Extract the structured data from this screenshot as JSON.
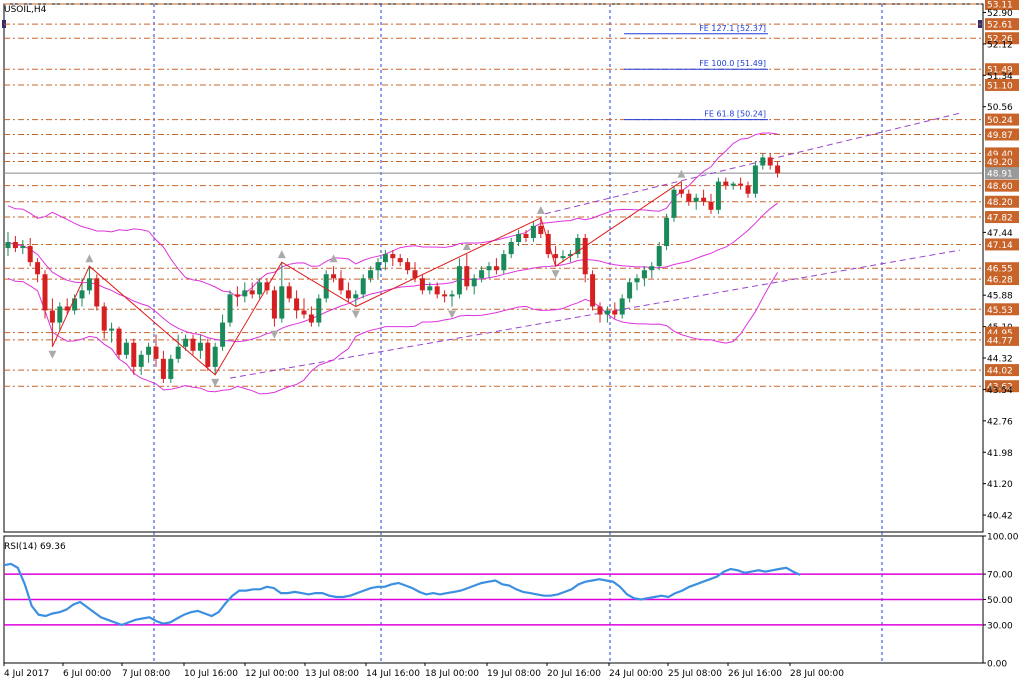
{
  "window_title": "USOIL,H4",
  "colors": {
    "background": "#ffffff",
    "axis_frame": "#000000",
    "vertical_grid": "#1f3fd8",
    "level_line": "#c8642a",
    "level_label_bg": "#c8642a",
    "current_price_label_bg": "#9a9a9a",
    "bollinger": "#dd33dd",
    "trend_channel": "#9944cc",
    "fe_line": "#1f3fd8",
    "zigzag": "#e01b1b",
    "bull_candle": "#1a8a5a",
    "bear_candle": "#d42020",
    "rsi_line": "#3d8fe0",
    "rsi_levels": "#dd00dd"
  },
  "chart_data": [
    {
      "type": "candlestick",
      "title": "USOIL,H4",
      "symbol": "USOIL",
      "timeframe": "H4",
      "ylim": [
        40.0,
        53.11
      ],
      "grid": false,
      "price_axis_labels": [
        "53.11",
        "52.90",
        "52.61",
        "52.26",
        "52.12",
        "51.49",
        "51.34",
        "51.10",
        "50.56",
        "50.24",
        "49.87",
        "49.40",
        "49.20",
        "48.91",
        "48.60",
        "48.20",
        "47.82",
        "47.44",
        "47.14",
        "46.55",
        "46.28",
        "45.88",
        "45.53",
        "45.10",
        "44.95",
        "44.77",
        "44.32",
        "44.02",
        "43.62",
        "43.54",
        "42.76",
        "41.98",
        "41.20",
        "40.42"
      ],
      "highlighted_levels": [
        "53.11",
        "52.61",
        "52.26",
        "51.49",
        "51.10",
        "50.24",
        "49.87",
        "49.40",
        "49.20",
        "48.60",
        "48.20",
        "47.82",
        "47.14",
        "46.55",
        "46.28",
        "45.53",
        "44.95",
        "44.77",
        "44.02",
        "43.62"
      ],
      "current_price": "48.91",
      "x_tick_labels": [
        "4 Jul 2017",
        "6 Jul 00:00",
        "7 Jul 08:00",
        "10 Jul 16:00",
        "12 Jul 00:00",
        "13 Jul 08:00",
        "14 Jul 16:00",
        "18 Jul 00:00",
        "19 Jul 08:00",
        "20 Jul 16:00",
        "24 Jul 00:00",
        "25 Jul 08:00",
        "26 Jul 16:00",
        "28 Jul 00:00"
      ],
      "fibonacci_expansion": [
        {
          "label": "FE 127.1 [52.37]",
          "price": 52.37
        },
        {
          "label": "FE 100.0 [51.49]",
          "price": 51.49
        },
        {
          "label": "FE 61.8 [50.24]",
          "price": 50.24
        }
      ],
      "candles": [
        {
          "o": 47.05,
          "h": 47.45,
          "l": 46.85,
          "c": 47.2
        },
        {
          "o": 47.2,
          "h": 47.35,
          "l": 46.95,
          "c": 47.05
        },
        {
          "o": 47.05,
          "h": 47.25,
          "l": 46.9,
          "c": 47.1
        },
        {
          "o": 47.1,
          "h": 47.3,
          "l": 46.6,
          "c": 46.7
        },
        {
          "o": 46.7,
          "h": 46.8,
          "l": 46.2,
          "c": 46.4
        },
        {
          "o": 46.4,
          "h": 46.5,
          "l": 45.3,
          "c": 45.5
        },
        {
          "o": 45.5,
          "h": 45.8,
          "l": 44.6,
          "c": 45.2
        },
        {
          "o": 45.2,
          "h": 45.7,
          "l": 45.0,
          "c": 45.6
        },
        {
          "o": 45.6,
          "h": 45.8,
          "l": 45.4,
          "c": 45.5
        },
        {
          "o": 45.5,
          "h": 45.9,
          "l": 45.4,
          "c": 45.8
        },
        {
          "o": 45.8,
          "h": 46.3,
          "l": 45.6,
          "c": 46.0
        },
        {
          "o": 46.0,
          "h": 46.6,
          "l": 45.9,
          "c": 46.3
        },
        {
          "o": 46.3,
          "h": 46.4,
          "l": 45.5,
          "c": 45.6
        },
        {
          "o": 45.6,
          "h": 45.7,
          "l": 44.8,
          "c": 45.0
        },
        {
          "o": 45.0,
          "h": 45.2,
          "l": 44.7,
          "c": 45.05
        },
        {
          "o": 45.05,
          "h": 45.1,
          "l": 44.3,
          "c": 44.4
        },
        {
          "o": 44.4,
          "h": 44.8,
          "l": 44.3,
          "c": 44.7
        },
        {
          "o": 44.7,
          "h": 44.8,
          "l": 43.9,
          "c": 44.1
        },
        {
          "o": 44.1,
          "h": 44.5,
          "l": 43.9,
          "c": 44.4
        },
        {
          "o": 44.4,
          "h": 44.7,
          "l": 44.2,
          "c": 44.6
        },
        {
          "o": 44.6,
          "h": 44.9,
          "l": 44.1,
          "c": 44.3
        },
        {
          "o": 44.3,
          "h": 44.5,
          "l": 43.7,
          "c": 43.8
        },
        {
          "o": 43.8,
          "h": 44.4,
          "l": 43.7,
          "c": 44.3
        },
        {
          "o": 44.3,
          "h": 44.9,
          "l": 44.2,
          "c": 44.6
        },
        {
          "o": 44.6,
          "h": 44.9,
          "l": 44.5,
          "c": 44.8
        },
        {
          "o": 44.8,
          "h": 44.9,
          "l": 44.4,
          "c": 44.5
        },
        {
          "o": 44.5,
          "h": 44.9,
          "l": 44.3,
          "c": 44.7
        },
        {
          "o": 44.7,
          "h": 44.8,
          "l": 44.0,
          "c": 44.1
        },
        {
          "o": 44.1,
          "h": 44.7,
          "l": 43.9,
          "c": 44.6
        },
        {
          "o": 44.6,
          "h": 45.4,
          "l": 44.5,
          "c": 45.2
        },
        {
          "o": 45.2,
          "h": 46.0,
          "l": 45.1,
          "c": 45.9
        },
        {
          "o": 45.9,
          "h": 46.1,
          "l": 45.6,
          "c": 45.85
        },
        {
          "o": 45.85,
          "h": 46.2,
          "l": 45.7,
          "c": 46.0
        },
        {
          "o": 46.0,
          "h": 46.2,
          "l": 45.8,
          "c": 45.9
        },
        {
          "o": 45.9,
          "h": 46.3,
          "l": 45.8,
          "c": 46.2
        },
        {
          "o": 46.2,
          "h": 46.3,
          "l": 45.9,
          "c": 46.0
        },
        {
          "o": 46.0,
          "h": 46.1,
          "l": 45.1,
          "c": 45.3
        },
        {
          "o": 45.3,
          "h": 46.7,
          "l": 45.2,
          "c": 46.1
        },
        {
          "o": 46.1,
          "h": 46.2,
          "l": 45.7,
          "c": 45.8
        },
        {
          "o": 45.8,
          "h": 46.0,
          "l": 45.3,
          "c": 45.5
        },
        {
          "o": 45.5,
          "h": 45.8,
          "l": 45.3,
          "c": 45.4
        },
        {
          "o": 45.4,
          "h": 45.6,
          "l": 45.1,
          "c": 45.2
        },
        {
          "o": 45.2,
          "h": 45.9,
          "l": 45.1,
          "c": 45.8
        },
        {
          "o": 45.8,
          "h": 46.5,
          "l": 45.7,
          "c": 46.4
        },
        {
          "o": 46.4,
          "h": 46.6,
          "l": 46.2,
          "c": 46.3
        },
        {
          "o": 46.3,
          "h": 46.5,
          "l": 45.9,
          "c": 46.0
        },
        {
          "o": 46.0,
          "h": 46.2,
          "l": 45.7,
          "c": 45.8
        },
        {
          "o": 45.8,
          "h": 46.0,
          "l": 45.6,
          "c": 45.9
        },
        {
          "o": 45.9,
          "h": 46.4,
          "l": 45.8,
          "c": 46.3
        },
        {
          "o": 46.3,
          "h": 46.6,
          "l": 46.2,
          "c": 46.5
        },
        {
          "o": 46.5,
          "h": 46.8,
          "l": 46.3,
          "c": 46.7
        },
        {
          "o": 46.7,
          "h": 47.0,
          "l": 46.5,
          "c": 46.9
        },
        {
          "o": 46.9,
          "h": 47.0,
          "l": 46.6,
          "c": 46.8
        },
        {
          "o": 46.8,
          "h": 46.9,
          "l": 46.6,
          "c": 46.7
        },
        {
          "o": 46.7,
          "h": 46.8,
          "l": 46.4,
          "c": 46.5
        },
        {
          "o": 46.5,
          "h": 46.7,
          "l": 46.2,
          "c": 46.3
        },
        {
          "o": 46.3,
          "h": 46.4,
          "l": 45.9,
          "c": 46.0
        },
        {
          "o": 46.0,
          "h": 46.2,
          "l": 45.9,
          "c": 46.1
        },
        {
          "o": 46.1,
          "h": 46.2,
          "l": 45.8,
          "c": 45.9
        },
        {
          "o": 45.9,
          "h": 46.0,
          "l": 45.7,
          "c": 45.85
        },
        {
          "o": 45.85,
          "h": 46.0,
          "l": 45.6,
          "c": 45.9
        },
        {
          "o": 45.9,
          "h": 46.8,
          "l": 45.8,
          "c": 46.6
        },
        {
          "o": 46.6,
          "h": 46.9,
          "l": 46.0,
          "c": 46.1
        },
        {
          "o": 46.1,
          "h": 46.4,
          "l": 45.9,
          "c": 46.3
        },
        {
          "o": 46.3,
          "h": 46.6,
          "l": 46.2,
          "c": 46.5
        },
        {
          "o": 46.5,
          "h": 46.7,
          "l": 46.3,
          "c": 46.6
        },
        {
          "o": 46.6,
          "h": 46.8,
          "l": 46.4,
          "c": 46.5
        },
        {
          "o": 46.5,
          "h": 47.0,
          "l": 46.4,
          "c": 46.9
        },
        {
          "o": 46.9,
          "h": 47.3,
          "l": 46.8,
          "c": 47.2
        },
        {
          "o": 47.2,
          "h": 47.5,
          "l": 47.1,
          "c": 47.4
        },
        {
          "o": 47.4,
          "h": 47.5,
          "l": 47.2,
          "c": 47.3
        },
        {
          "o": 47.3,
          "h": 47.7,
          "l": 47.2,
          "c": 47.6
        },
        {
          "o": 47.6,
          "h": 47.8,
          "l": 47.3,
          "c": 47.4
        },
        {
          "o": 47.4,
          "h": 47.5,
          "l": 46.8,
          "c": 46.9
        },
        {
          "o": 46.9,
          "h": 47.1,
          "l": 46.6,
          "c": 46.8
        },
        {
          "o": 46.8,
          "h": 47.0,
          "l": 46.7,
          "c": 46.85
        },
        {
          "o": 46.85,
          "h": 47.0,
          "l": 46.7,
          "c": 46.9
        },
        {
          "o": 46.9,
          "h": 47.4,
          "l": 46.8,
          "c": 47.3
        },
        {
          "o": 47.3,
          "h": 47.4,
          "l": 46.2,
          "c": 46.4
        },
        {
          "o": 46.4,
          "h": 46.5,
          "l": 45.5,
          "c": 45.6
        },
        {
          "o": 45.6,
          "h": 45.7,
          "l": 45.2,
          "c": 45.4
        },
        {
          "o": 45.4,
          "h": 45.6,
          "l": 45.2,
          "c": 45.5
        },
        {
          "o": 45.5,
          "h": 45.7,
          "l": 45.3,
          "c": 45.4
        },
        {
          "o": 45.4,
          "h": 45.9,
          "l": 45.3,
          "c": 45.8
        },
        {
          "o": 45.8,
          "h": 46.3,
          "l": 45.7,
          "c": 46.2
        },
        {
          "o": 46.2,
          "h": 46.4,
          "l": 46.0,
          "c": 46.3
        },
        {
          "o": 46.3,
          "h": 46.6,
          "l": 46.1,
          "c": 46.5
        },
        {
          "o": 46.5,
          "h": 46.7,
          "l": 46.3,
          "c": 46.6
        },
        {
          "o": 46.6,
          "h": 47.2,
          "l": 46.5,
          "c": 47.1
        },
        {
          "o": 47.1,
          "h": 47.9,
          "l": 47.0,
          "c": 47.8
        },
        {
          "o": 47.8,
          "h": 48.6,
          "l": 47.7,
          "c": 48.5
        },
        {
          "o": 48.5,
          "h": 48.7,
          "l": 48.3,
          "c": 48.4
        },
        {
          "o": 48.4,
          "h": 48.5,
          "l": 48.1,
          "c": 48.2
        },
        {
          "o": 48.2,
          "h": 48.4,
          "l": 48.0,
          "c": 48.3
        },
        {
          "o": 48.3,
          "h": 48.5,
          "l": 48.1,
          "c": 48.2
        },
        {
          "o": 48.2,
          "h": 48.4,
          "l": 47.9,
          "c": 48.0
        },
        {
          "o": 48.0,
          "h": 48.8,
          "l": 47.9,
          "c": 48.7
        },
        {
          "o": 48.7,
          "h": 48.8,
          "l": 48.5,
          "c": 48.6
        },
        {
          "o": 48.6,
          "h": 48.7,
          "l": 48.5,
          "c": 48.65
        },
        {
          "o": 48.65,
          "h": 48.8,
          "l": 48.5,
          "c": 48.6
        },
        {
          "o": 48.6,
          "h": 48.7,
          "l": 48.3,
          "c": 48.4
        },
        {
          "o": 48.4,
          "h": 49.2,
          "l": 48.3,
          "c": 49.1
        },
        {
          "o": 49.1,
          "h": 49.4,
          "l": 49.0,
          "c": 49.3
        },
        {
          "o": 49.3,
          "h": 49.4,
          "l": 49.0,
          "c": 49.1
        },
        {
          "o": 49.1,
          "h": 49.2,
          "l": 48.8,
          "c": 48.91
        }
      ],
      "indicators": [
        "Bollinger Bands",
        "ZigZag",
        "Fractals",
        "Trend channel"
      ]
    },
    {
      "type": "line",
      "title": "RSI(14) 69.36",
      "ylim": [
        0,
        100
      ],
      "y_tick_labels": [
        "100.00",
        "70.00",
        "50.00",
        "30.00",
        "0.00"
      ],
      "levels": [
        70,
        50,
        30
      ],
      "series": [
        {
          "values": [
            77,
            78,
            75,
            62,
            45,
            38,
            37,
            39,
            40,
            42,
            46,
            48,
            44,
            40,
            36,
            34,
            32,
            30,
            32,
            34,
            35,
            36,
            33,
            31,
            32,
            35,
            38,
            40,
            41,
            39,
            37,
            40,
            47,
            53,
            57,
            57,
            58,
            58,
            60,
            59,
            55,
            55,
            56,
            55,
            54,
            55,
            55,
            53,
            52,
            52,
            53,
            55,
            57,
            59,
            60,
            60,
            62,
            63,
            61,
            59,
            56,
            54,
            55,
            54,
            55,
            56,
            57,
            59,
            61,
            63,
            64,
            65,
            62,
            61,
            58,
            56,
            55,
            54,
            53,
            53,
            54,
            56,
            58,
            62,
            64,
            65,
            66,
            65,
            64,
            60,
            54,
            51,
            50,
            51,
            52,
            53,
            52,
            55,
            57,
            60,
            62,
            64,
            66,
            68,
            72,
            74,
            73,
            71,
            72,
            73,
            72,
            73,
            74,
            75,
            72,
            69.36
          ]
        }
      ]
    }
  ]
}
